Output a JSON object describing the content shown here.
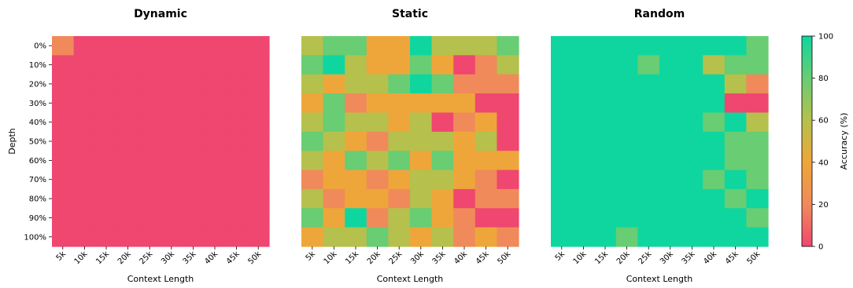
{
  "colorbar": {
    "label": "Accuracy (%)",
    "ticks": [
      "0",
      "20",
      "40",
      "60",
      "80",
      "100"
    ],
    "colors": [
      "#ef476f",
      "#f08a5a",
      "#eea63a",
      "#b6c04c",
      "#68cd73",
      "#0fd69f"
    ]
  },
  "chart_data": [
    {
      "type": "heatmap",
      "title": "Dynamic",
      "xlabel": "Context Length",
      "ylabel": "Depth",
      "x": [
        "5k",
        "10k",
        "15k",
        "20k",
        "25k",
        "30k",
        "35k",
        "40k",
        "45k",
        "50k"
      ],
      "y": [
        "0%",
        "10%",
        "20%",
        "30%",
        "40%",
        "50%",
        "60%",
        "70%",
        "80%",
        "90%",
        "100%"
      ],
      "zlim": [
        0,
        100
      ],
      "values": [
        [
          20,
          0,
          0,
          0,
          0,
          0,
          0,
          0,
          0,
          0
        ],
        [
          0,
          0,
          0,
          0,
          0,
          0,
          0,
          0,
          0,
          0
        ],
        [
          0,
          0,
          0,
          0,
          0,
          0,
          0,
          0,
          0,
          0
        ],
        [
          0,
          0,
          0,
          0,
          0,
          0,
          0,
          0,
          0,
          0
        ],
        [
          0,
          0,
          0,
          0,
          0,
          0,
          0,
          0,
          0,
          0
        ],
        [
          0,
          0,
          0,
          0,
          0,
          0,
          0,
          0,
          0,
          0
        ],
        [
          0,
          0,
          0,
          0,
          0,
          0,
          0,
          0,
          0,
          0
        ],
        [
          0,
          0,
          0,
          0,
          0,
          0,
          0,
          0,
          0,
          0
        ],
        [
          0,
          0,
          0,
          0,
          0,
          0,
          0,
          0,
          0,
          0
        ],
        [
          0,
          0,
          0,
          0,
          0,
          0,
          0,
          0,
          0,
          0
        ],
        [
          0,
          0,
          0,
          0,
          0,
          0,
          0,
          0,
          0,
          0
        ]
      ]
    },
    {
      "type": "heatmap",
      "title": "Static",
      "xlabel": "Context Length",
      "ylabel": "",
      "x": [
        "5k",
        "10k",
        "15k",
        "20k",
        "25k",
        "30k",
        "35k",
        "40k",
        "45k",
        "50k"
      ],
      "y": [
        "0%",
        "10%",
        "20%",
        "30%",
        "40%",
        "50%",
        "60%",
        "70%",
        "80%",
        "90%",
        "100%"
      ],
      "zlim": [
        0,
        100
      ],
      "values": [
        [
          60,
          80,
          80,
          40,
          40,
          100,
          60,
          60,
          60,
          80
        ],
        [
          80,
          100,
          60,
          40,
          40,
          80,
          40,
          0,
          20,
          60
        ],
        [
          60,
          40,
          60,
          60,
          80,
          100,
          80,
          20,
          20,
          20
        ],
        [
          40,
          80,
          20,
          40,
          40,
          40,
          40,
          40,
          0,
          0
        ],
        [
          60,
          80,
          60,
          60,
          40,
          60,
          0,
          20,
          40,
          0
        ],
        [
          80,
          60,
          40,
          20,
          60,
          60,
          60,
          40,
          60,
          0
        ],
        [
          60,
          40,
          80,
          60,
          80,
          40,
          80,
          40,
          40,
          40
        ],
        [
          20,
          40,
          40,
          20,
          40,
          60,
          60,
          40,
          20,
          0
        ],
        [
          60,
          20,
          40,
          40,
          20,
          60,
          40,
          0,
          20,
          20
        ],
        [
          80,
          40,
          100,
          20,
          60,
          80,
          40,
          20,
          0,
          0
        ],
        [
          40,
          60,
          60,
          80,
          60,
          40,
          60,
          20,
          40,
          20
        ]
      ]
    },
    {
      "type": "heatmap",
      "title": "Random",
      "xlabel": "Context Length",
      "ylabel": "",
      "x": [
        "5k",
        "10k",
        "15k",
        "20k",
        "25k",
        "30k",
        "35k",
        "40k",
        "45k",
        "50k"
      ],
      "y": [
        "0%",
        "10%",
        "20%",
        "30%",
        "40%",
        "50%",
        "60%",
        "70%",
        "80%",
        "90%",
        "100%"
      ],
      "zlim": [
        0,
        100
      ],
      "values": [
        [
          100,
          100,
          100,
          100,
          100,
          100,
          100,
          100,
          100,
          80
        ],
        [
          100,
          100,
          100,
          100,
          80,
          100,
          100,
          60,
          80,
          80
        ],
        [
          100,
          100,
          100,
          100,
          100,
          100,
          100,
          100,
          60,
          20
        ],
        [
          100,
          100,
          100,
          100,
          100,
          100,
          100,
          100,
          0,
          0
        ],
        [
          100,
          100,
          100,
          100,
          100,
          100,
          100,
          80,
          100,
          60
        ],
        [
          100,
          100,
          100,
          100,
          100,
          100,
          100,
          100,
          80,
          80
        ],
        [
          100,
          100,
          100,
          100,
          100,
          100,
          100,
          100,
          80,
          80
        ],
        [
          100,
          100,
          100,
          100,
          100,
          100,
          100,
          80,
          100,
          80
        ],
        [
          100,
          100,
          100,
          100,
          100,
          100,
          100,
          100,
          80,
          100
        ],
        [
          100,
          100,
          100,
          100,
          100,
          100,
          100,
          100,
          100,
          80
        ],
        [
          100,
          100,
          100,
          80,
          100,
          100,
          100,
          100,
          100,
          100
        ]
      ]
    }
  ]
}
